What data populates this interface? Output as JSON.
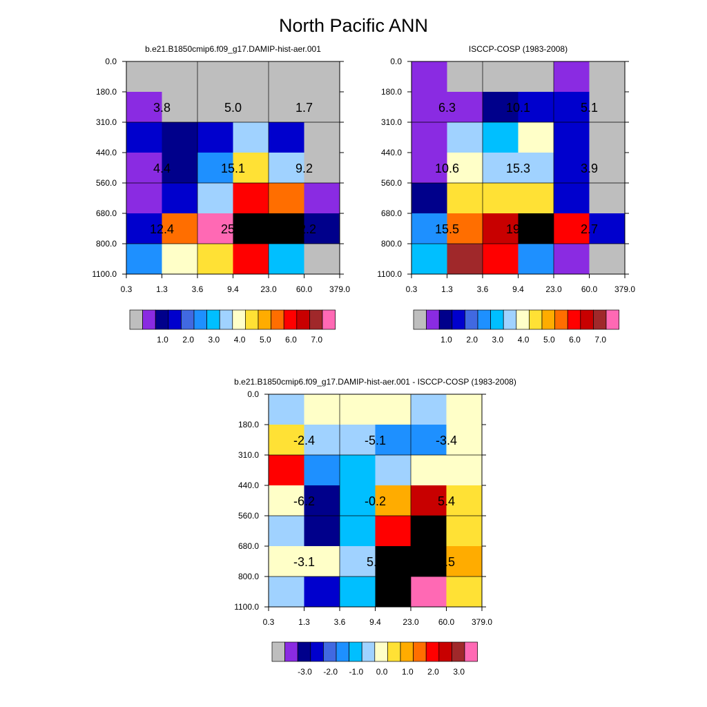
{
  "title": "North Pacific ANN",
  "chart_data": [
    {
      "type": "heatmap",
      "title": "b.e21.B1850cmip6.f09_g17.DAMIP-hist-aer.001",
      "x_ticks": [
        "0.3",
        "1.3",
        "3.6",
        "9.4",
        "23.0",
        "60.0",
        "379.0"
      ],
      "y_ticks": [
        "0.0",
        "180.0",
        "310.0",
        "440.0",
        "560.0",
        "680.0",
        "800.0",
        "1100.0"
      ],
      "cells": [
        [
          0,
          0,
          0,
          0,
          0,
          0
        ],
        [
          1,
          0,
          0,
          0,
          0,
          0
        ],
        [
          3,
          2,
          3,
          7,
          3,
          0
        ],
        [
          1,
          2,
          5,
          9,
          7,
          0
        ],
        [
          1,
          3,
          7,
          12,
          11,
          1
        ],
        [
          3,
          11,
          15,
          18,
          18,
          2
        ],
        [
          5,
          8,
          9,
          12,
          6,
          0
        ]
      ],
      "annotations": [
        {
          "row": 1,
          "col": 1,
          "text": "3.8"
        },
        {
          "row": 1,
          "col": 3,
          "text": "5.0"
        },
        {
          "row": 1,
          "col": 5,
          "text": "1.7"
        },
        {
          "row": 3,
          "col": 1,
          "text": "4.4"
        },
        {
          "row": 3,
          "col": 3,
          "text": "15.1"
        },
        {
          "row": 3,
          "col": 5,
          "text": "9.2"
        },
        {
          "row": 5,
          "col": 1,
          "text": "12.4"
        },
        {
          "row": 5,
          "col": 3,
          "text": "25.1"
        },
        {
          "row": 5,
          "col": 5,
          "text": "12.2"
        }
      ],
      "colorbar": {
        "labels": [
          "1.0",
          "2.0",
          "3.0",
          "4.0",
          "5.0",
          "6.0",
          "7.0"
        ]
      }
    },
    {
      "type": "heatmap",
      "title": "ISCCP-COSP (1983-2008)",
      "x_ticks": [
        "0.3",
        "1.3",
        "3.6",
        "9.4",
        "23.0",
        "60.0",
        "379.0"
      ],
      "y_ticks": [
        "0.0",
        "180.0",
        "310.0",
        "440.0",
        "560.0",
        "680.0",
        "800.0",
        "1100.0"
      ],
      "cells": [
        [
          1,
          0,
          0,
          0,
          1,
          0
        ],
        [
          1,
          1,
          2,
          3,
          3,
          0
        ],
        [
          1,
          7,
          6,
          8,
          3,
          0
        ],
        [
          1,
          8,
          7,
          7,
          3,
          0
        ],
        [
          2,
          9,
          9,
          9,
          3,
          0
        ],
        [
          5,
          11,
          13,
          16,
          12,
          3
        ],
        [
          6,
          14,
          12,
          5,
          1,
          0
        ]
      ],
      "annotations": [
        {
          "row": 1,
          "col": 1,
          "text": "6.3"
        },
        {
          "row": 1,
          "col": 3,
          "text": "10.1"
        },
        {
          "row": 1,
          "col": 5,
          "text": "5.1"
        },
        {
          "row": 3,
          "col": 1,
          "text": "10.6"
        },
        {
          "row": 3,
          "col": 3,
          "text": "15.3"
        },
        {
          "row": 3,
          "col": 5,
          "text": "3.9"
        },
        {
          "row": 5,
          "col": 1,
          "text": "15.5"
        },
        {
          "row": 5,
          "col": 3,
          "text": "19.7"
        },
        {
          "row": 5,
          "col": 5,
          "text": "2.7"
        }
      ],
      "colorbar": {
        "labels": [
          "1.0",
          "2.0",
          "3.0",
          "4.0",
          "5.0",
          "6.0",
          "7.0"
        ]
      }
    },
    {
      "type": "heatmap",
      "title": "b.e21.B1850cmip6.f09_g17.DAMIP-hist-aer.001 - ISCCP-COSP (1983-2008)",
      "x_ticks": [
        "0.3",
        "1.3",
        "3.6",
        "9.4",
        "23.0",
        "60.0",
        "379.0"
      ],
      "y_ticks": [
        "0.0",
        "180.0",
        "310.0",
        "440.0",
        "560.0",
        "680.0",
        "800.0",
        "1100.0"
      ],
      "cells": [
        [
          7,
          8,
          8,
          8,
          7,
          8
        ],
        [
          9,
          7,
          7,
          5,
          5,
          8
        ],
        [
          12,
          5,
          6,
          7,
          8,
          8
        ],
        [
          8,
          2,
          6,
          10,
          13,
          9
        ],
        [
          7,
          2,
          6,
          12,
          17,
          9
        ],
        [
          8,
          8,
          7,
          18,
          18,
          10
        ],
        [
          7,
          3,
          6,
          16,
          15,
          9
        ]
      ],
      "annotations": [
        {
          "row": 1,
          "col": 1,
          "text": "-2.4"
        },
        {
          "row": 1,
          "col": 3,
          "text": "-5.1"
        },
        {
          "row": 1,
          "col": 5,
          "text": "-3.4"
        },
        {
          "row": 3,
          "col": 1,
          "text": "-6.2"
        },
        {
          "row": 3,
          "col": 3,
          "text": "-0.2"
        },
        {
          "row": 3,
          "col": 5,
          "text": "5.4"
        },
        {
          "row": 5,
          "col": 1,
          "text": "-3.1"
        },
        {
          "row": 5,
          "col": 3,
          "text": "5.4"
        },
        {
          "row": 5,
          "col": 5,
          "text": "9.5"
        }
      ],
      "colorbar": {
        "labels": [
          "-3.0",
          "-2.0",
          "-1.0",
          "0.0",
          "1.0",
          "2.0",
          "3.0"
        ]
      }
    }
  ],
  "palette": [
    "#bebebe",
    "#8a2be2",
    "#00008b",
    "#0000cd",
    "#4169e1",
    "#1e90ff",
    "#00bfff",
    "#a0d2ff",
    "#ffffc8",
    "#ffe135",
    "#ffac00",
    "#ff6e00",
    "#ff0000",
    "#c80000",
    "#a0282a",
    "#ff69b4"
  ]
}
